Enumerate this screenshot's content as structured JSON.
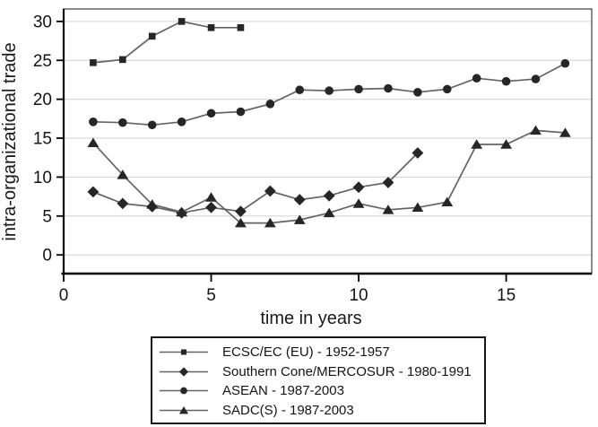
{
  "chart_data": {
    "type": "line",
    "title": "",
    "xlabel": "time in years",
    "ylabel": "intra-organizational trade",
    "x_ticks": [
      0,
      5,
      10,
      15
    ],
    "y_ticks": [
      0,
      5,
      10,
      15,
      20,
      25,
      30
    ],
    "xlim": [
      0,
      17.9
    ],
    "ylim": [
      -2.4,
      31.6
    ],
    "grid": "horizontal",
    "legend_position": "bottom-center",
    "colors": {
      "line": "#646464",
      "marker": "#262626",
      "grid": "#d6d6d6",
      "axis": "#000000",
      "border": "#3c3c3c",
      "text": "#141414",
      "background": "#ffffff"
    },
    "series": [
      {
        "label": "ECSC/EC (EU) - 1952-1957",
        "marker": "square",
        "x": [
          1,
          2,
          3,
          4,
          5,
          6
        ],
        "values": [
          24.7,
          25.1,
          28.1,
          30.0,
          29.2,
          29.2
        ]
      },
      {
        "label": "Southern Cone/MERCOSUR - 1980-1991",
        "marker": "diamond",
        "x": [
          1,
          2,
          3,
          4,
          5,
          6,
          7,
          8,
          9,
          10,
          11,
          12
        ],
        "values": [
          8.1,
          6.6,
          6.2,
          5.4,
          6.1,
          5.6,
          8.2,
          7.1,
          7.6,
          8.7,
          9.3,
          13.1
        ]
      },
      {
        "label": "ASEAN - 1987-2003",
        "marker": "circle",
        "x": [
          1,
          2,
          3,
          4,
          5,
          6,
          7,
          8,
          9,
          10,
          11,
          12,
          13,
          14,
          15,
          16,
          17
        ],
        "values": [
          17.1,
          17.0,
          16.7,
          17.1,
          18.2,
          18.4,
          19.4,
          21.2,
          21.1,
          21.3,
          21.4,
          20.9,
          21.3,
          22.7,
          22.3,
          22.6,
          24.6
        ]
      },
      {
        "label": "SADC(S) - 1987-2003",
        "marker": "triangle",
        "x": [
          1,
          2,
          3,
          4,
          5,
          6,
          7,
          8,
          9,
          10,
          11,
          12,
          13,
          14,
          15,
          16,
          17
        ],
        "values": [
          14.4,
          10.3,
          6.5,
          5.5,
          7.4,
          4.1,
          4.1,
          4.5,
          5.4,
          6.6,
          5.8,
          6.1,
          6.8,
          14.2,
          14.2,
          16.0,
          15.7
        ]
      }
    ]
  }
}
